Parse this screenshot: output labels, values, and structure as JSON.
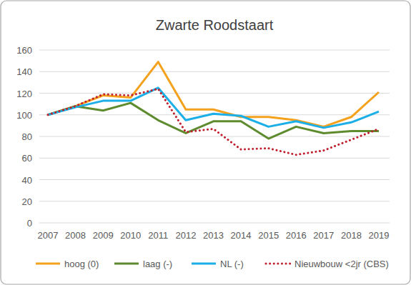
{
  "chart_data": {
    "type": "line",
    "title": "Zwarte Roodstaart",
    "categories": [
      "2007",
      "2008",
      "2009",
      "2010",
      "2011",
      "2012",
      "2013",
      "2014",
      "2015",
      "2016",
      "2017",
      "2018",
      "2019"
    ],
    "series": [
      {
        "name": "hoog (0)",
        "color": "#f4a11d",
        "line_style": "solid",
        "values": [
          100,
          108,
          118,
          116,
          149,
          105,
          105,
          98,
          98,
          95,
          89,
          98,
          121
        ]
      },
      {
        "name": "laag (-)",
        "color": "#5f8b2f",
        "line_style": "solid",
        "values": [
          100,
          108,
          104,
          111,
          95,
          83,
          94,
          94,
          78,
          89,
          83,
          85,
          85
        ]
      },
      {
        "name": "NL (-)",
        "color": "#1caee6",
        "line_style": "solid",
        "values": [
          100,
          107,
          113,
          113,
          125,
          95,
          101,
          99,
          89,
          94,
          88,
          93,
          103
        ]
      },
      {
        "name": "Nieuwbouw <2jr (CBS)",
        "color": "#c0202e",
        "line_style": "dotted",
        "values": [
          100,
          108,
          119,
          118,
          124,
          84,
          87,
          68,
          69,
          63,
          67,
          77,
          87
        ]
      }
    ],
    "ylim": [
      0,
      160
    ],
    "yticks": [
      0,
      20,
      40,
      60,
      80,
      100,
      120,
      140,
      160
    ],
    "grid": true,
    "legend": "bottom"
  }
}
